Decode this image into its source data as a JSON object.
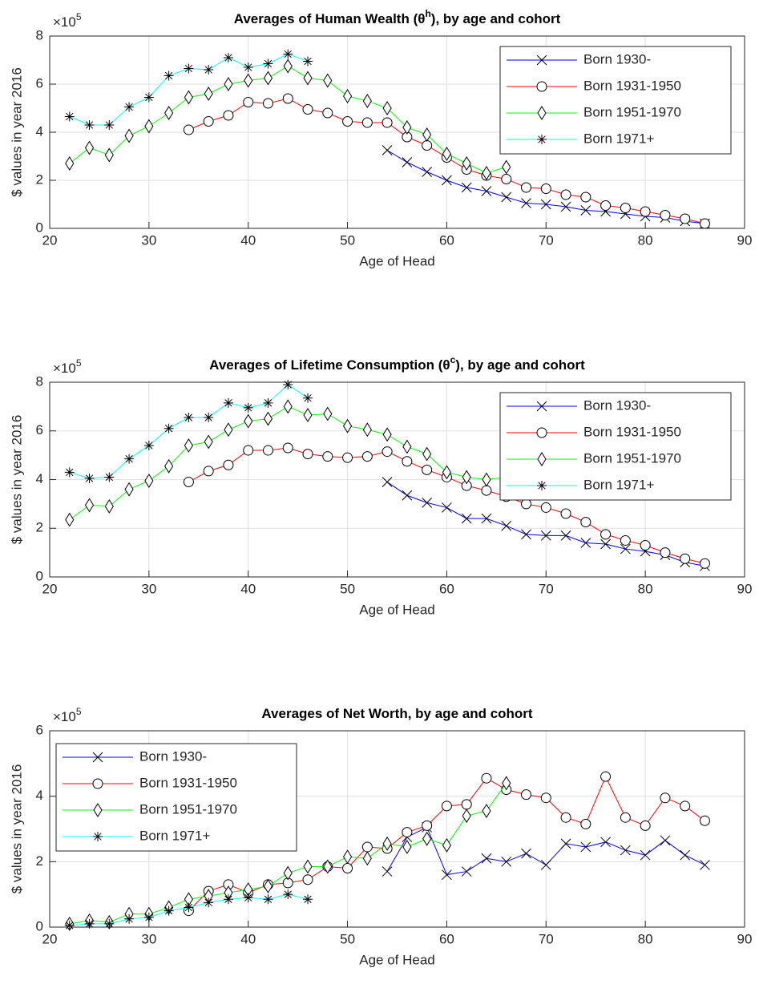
{
  "chart_data": [
    {
      "type": "line",
      "title": "Averages of Human Wealth (θ",
      "title_sup": "h",
      "title_end": "), by age and cohort",
      "xlabel": "Age of Head",
      "ylabel": "$ values in year 2016",
      "y_multiplier": "×10",
      "y_multiplier_exp": "5",
      "xlim": [
        20,
        90
      ],
      "xticks": [
        20,
        30,
        40,
        50,
        60,
        70,
        80,
        90
      ],
      "ylim": [
        0,
        8
      ],
      "yticks": [
        0,
        2,
        4,
        6,
        8
      ],
      "grid": true,
      "legend": "northeast",
      "series": [
        {
          "name": "Born 1930-",
          "color": "#0000ff",
          "marker": "x",
          "x": [
            54,
            56,
            58,
            60,
            62,
            64,
            66,
            68,
            70,
            72,
            74,
            76,
            78,
            80,
            82,
            84,
            86
          ],
          "values": [
            3.25,
            2.75,
            2.35,
            2.0,
            1.7,
            1.55,
            1.3,
            1.05,
            1.0,
            0.9,
            0.75,
            0.7,
            0.6,
            0.5,
            0.45,
            0.3,
            0.2
          ]
        },
        {
          "name": "Born 1931-1950",
          "color": "#ff0000",
          "marker": "o",
          "x": [
            34,
            36,
            38,
            40,
            42,
            44,
            46,
            48,
            50,
            52,
            54,
            56,
            58,
            60,
            62,
            64,
            66,
            68,
            70,
            72,
            74,
            76,
            78,
            80,
            82,
            84,
            86
          ],
          "values": [
            4.1,
            4.45,
            4.7,
            5.25,
            5.2,
            5.4,
            4.95,
            4.8,
            4.45,
            4.4,
            4.4,
            3.8,
            3.45,
            2.95,
            2.45,
            2.2,
            2.05,
            1.7,
            1.65,
            1.4,
            1.3,
            0.95,
            0.85,
            0.7,
            0.55,
            0.4,
            0.2
          ]
        },
        {
          "name": "Born 1951-1970",
          "color": "#00ff00",
          "marker": "d",
          "x": [
            22,
            24,
            26,
            28,
            30,
            32,
            34,
            36,
            38,
            40,
            42,
            44,
            46,
            48,
            50,
            52,
            54,
            56,
            58,
            60,
            62,
            64,
            66
          ],
          "values": [
            2.7,
            3.35,
            3.05,
            3.85,
            4.25,
            4.8,
            5.45,
            5.6,
            6.0,
            6.15,
            6.25,
            6.75,
            6.25,
            6.15,
            5.5,
            5.3,
            5.0,
            4.2,
            3.9,
            3.1,
            2.7,
            2.3,
            2.55
          ]
        },
        {
          "name": "Born 1971+",
          "color": "#00ffff",
          "marker": "*",
          "x": [
            22,
            24,
            26,
            28,
            30,
            32,
            34,
            36,
            38,
            40,
            42,
            44,
            46
          ],
          "values": [
            4.65,
            4.3,
            4.3,
            5.05,
            5.45,
            6.35,
            6.65,
            6.6,
            7.1,
            6.7,
            6.85,
            7.25,
            6.95
          ]
        }
      ]
    },
    {
      "type": "line",
      "title": "Averages of Lifetime Consumption (θ",
      "title_sup": "c",
      "title_end": "), by age and cohort",
      "xlabel": "Age of Head",
      "ylabel": "$ values in year 2016",
      "y_multiplier": "×10",
      "y_multiplier_exp": "5",
      "xlim": [
        20,
        90
      ],
      "xticks": [
        20,
        30,
        40,
        50,
        60,
        70,
        80,
        90
      ],
      "ylim": [
        0,
        8
      ],
      "yticks": [
        0,
        2,
        4,
        6,
        8
      ],
      "grid": true,
      "legend": "northeast",
      "series": [
        {
          "name": "Born 1930-",
          "color": "#0000ff",
          "marker": "x",
          "x": [
            54,
            56,
            58,
            60,
            62,
            64,
            66,
            68,
            70,
            72,
            74,
            76,
            78,
            80,
            82,
            84,
            86
          ],
          "values": [
            3.9,
            3.35,
            3.05,
            2.85,
            2.4,
            2.4,
            2.1,
            1.75,
            1.7,
            1.7,
            1.4,
            1.35,
            1.15,
            1.05,
            0.9,
            0.6,
            0.45
          ]
        },
        {
          "name": "Born 1931-1950",
          "color": "#ff0000",
          "marker": "o",
          "x": [
            34,
            36,
            38,
            40,
            42,
            44,
            46,
            48,
            50,
            52,
            54,
            56,
            58,
            60,
            62,
            64,
            66,
            68,
            70,
            72,
            74,
            76,
            78,
            80,
            82,
            84,
            86
          ],
          "values": [
            3.9,
            4.35,
            4.6,
            5.2,
            5.2,
            5.3,
            5.05,
            4.95,
            4.9,
            4.95,
            5.15,
            4.75,
            4.4,
            4.1,
            3.75,
            3.55,
            3.3,
            3.0,
            2.85,
            2.6,
            2.25,
            1.75,
            1.5,
            1.3,
            1.0,
            0.75,
            0.55
          ]
        },
        {
          "name": "Born 1951-1970",
          "color": "#00ff00",
          "marker": "d",
          "x": [
            22,
            24,
            26,
            28,
            30,
            32,
            34,
            36,
            38,
            40,
            42,
            44,
            46,
            48,
            50,
            52,
            54,
            56,
            58,
            60,
            62,
            64,
            66
          ],
          "values": [
            2.35,
            2.95,
            2.9,
            3.6,
            3.95,
            4.55,
            5.4,
            5.55,
            6.05,
            6.4,
            6.5,
            7.0,
            6.65,
            6.7,
            6.2,
            6.05,
            5.85,
            5.35,
            5.05,
            4.3,
            4.1,
            4.0,
            4.1
          ]
        },
        {
          "name": "Born 1971+",
          "color": "#00ffff",
          "marker": "*",
          "x": [
            22,
            24,
            26,
            28,
            30,
            32,
            34,
            36,
            38,
            40,
            42,
            44,
            46
          ],
          "values": [
            4.3,
            4.05,
            4.1,
            4.85,
            5.4,
            6.1,
            6.55,
            6.55,
            7.15,
            6.95,
            7.15,
            7.9,
            7.35
          ]
        }
      ]
    },
    {
      "type": "line",
      "title": "Averages of Net Worth, by age and cohort",
      "xlabel": "Age of Head",
      "ylabel": "$ values in year 2016",
      "y_multiplier": "×10",
      "y_multiplier_exp": "5",
      "xlim": [
        20,
        90
      ],
      "xticks": [
        20,
        30,
        40,
        50,
        60,
        70,
        80,
        90
      ],
      "ylim": [
        0,
        6
      ],
      "yticks": [
        0,
        2,
        4,
        6
      ],
      "grid": true,
      "legend": "northwest",
      "series": [
        {
          "name": "Born 1930-",
          "color": "#0000ff",
          "marker": "x",
          "x": [
            54,
            56,
            58,
            60,
            62,
            64,
            66,
            68,
            70,
            72,
            74,
            76,
            78,
            80,
            82,
            84,
            86
          ],
          "values": [
            1.7,
            2.75,
            3.05,
            1.6,
            1.7,
            2.1,
            2.0,
            2.25,
            1.9,
            2.55,
            2.45,
            2.6,
            2.35,
            2.2,
            2.65,
            2.2,
            1.9
          ]
        },
        {
          "name": "Born 1931-1950",
          "color": "#ff0000",
          "marker": "o",
          "x": [
            34,
            36,
            38,
            40,
            42,
            44,
            46,
            48,
            50,
            52,
            54,
            56,
            58,
            60,
            62,
            64,
            66,
            68,
            70,
            72,
            74,
            76,
            78,
            80,
            82,
            84,
            86
          ],
          "values": [
            0.5,
            1.1,
            1.3,
            1.05,
            1.3,
            1.35,
            1.45,
            1.85,
            1.8,
            2.45,
            2.4,
            2.9,
            3.1,
            3.7,
            3.75,
            4.55,
            4.2,
            4.05,
            3.95,
            3.35,
            3.15,
            4.6,
            3.35,
            3.1,
            3.95,
            3.7,
            3.25
          ]
        },
        {
          "name": "Born 1951-1970",
          "color": "#00ff00",
          "marker": "d",
          "x": [
            22,
            24,
            26,
            28,
            30,
            32,
            34,
            36,
            38,
            40,
            42,
            44,
            46,
            48,
            50,
            52,
            54,
            56,
            58,
            60,
            62,
            64,
            66
          ],
          "values": [
            0.1,
            0.2,
            0.15,
            0.4,
            0.4,
            0.6,
            0.85,
            0.95,
            1.05,
            1.15,
            1.25,
            1.65,
            1.85,
            1.85,
            2.15,
            2.1,
            2.55,
            2.45,
            2.7,
            2.5,
            3.4,
            3.55,
            4.4
          ]
        },
        {
          "name": "Born 1971+",
          "color": "#00ffff",
          "marker": "*",
          "x": [
            22,
            24,
            26,
            28,
            30,
            32,
            34,
            36,
            38,
            40,
            42,
            44,
            46
          ],
          "values": [
            0.05,
            0.1,
            0.1,
            0.25,
            0.3,
            0.5,
            0.6,
            0.75,
            0.85,
            0.9,
            0.85,
            1.0,
            0.85
          ]
        }
      ]
    }
  ]
}
